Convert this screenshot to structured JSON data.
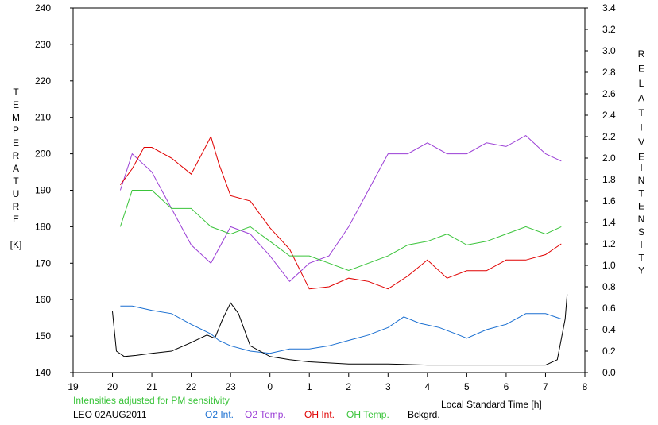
{
  "chart_data": {
    "type": "line",
    "left_axis": {
      "label_letters": [
        "T",
        "E",
        "M",
        "P",
        "E",
        "R",
        "A",
        "T",
        "U",
        "R",
        "E"
      ],
      "unit": "[K]",
      "ylim": [
        140,
        240
      ],
      "ticks": [
        "140",
        "150",
        "160",
        "170",
        "180",
        "190",
        "200",
        "210",
        "220",
        "230",
        "240"
      ]
    },
    "right_axis": {
      "label_word1": [
        "R",
        "E",
        "L",
        "A",
        "T",
        "I",
        "V",
        "E"
      ],
      "label_word2": [
        "I",
        "N",
        "T",
        "E",
        "N",
        "S",
        "I",
        "T",
        "Y"
      ],
      "ylim": [
        0.0,
        3.4
      ],
      "ticks": [
        "0.0",
        "0.2",
        "0.4",
        "0.6",
        "0.8",
        "1.0",
        "1.2",
        "1.4",
        "1.6",
        "1.8",
        "2.0",
        "2.2",
        "2.4",
        "2.6",
        "2.8",
        "3.0",
        "3.2",
        "3.4"
      ]
    },
    "x_axis": {
      "xlim": [
        19,
        32
      ],
      "ticks": [
        "19",
        "20",
        "21",
        "22",
        "23",
        "0",
        "1",
        "2",
        "3",
        "4",
        "5",
        "6",
        "7",
        "8"
      ],
      "label": "Local Standard Time [h]"
    },
    "note": "Intensities adjusted for PM sensitivity",
    "station": "LEO 02AUG2011",
    "series": [
      {
        "name": "O2 Int.",
        "axis": "right",
        "color": "#1a6fd1",
        "x": [
          20.2,
          20.5,
          21.0,
          21.5,
          22.0,
          22.5,
          22.7,
          23.0,
          23.5,
          24.0,
          24.5,
          25.0,
          25.5,
          26.0,
          26.5,
          27.0,
          27.4,
          27.8,
          28.3,
          28.8,
          29.0,
          29.5,
          30.0,
          30.5,
          31.0,
          31.4
        ],
        "y": [
          0.62,
          0.62,
          0.58,
          0.55,
          0.45,
          0.36,
          0.3,
          0.25,
          0.2,
          0.18,
          0.22,
          0.22,
          0.25,
          0.3,
          0.35,
          0.42,
          0.52,
          0.46,
          0.42,
          0.35,
          0.32,
          0.4,
          0.45,
          0.55,
          0.55,
          0.5
        ]
      },
      {
        "name": "O2 Temp.",
        "axis": "left",
        "color": "#9b3fd6",
        "x": [
          20.2,
          20.5,
          21.0,
          21.5,
          22.0,
          22.5,
          23.0,
          23.5,
          24.0,
          24.5,
          25.0,
          25.5,
          26.0,
          26.5,
          27.0,
          27.5,
          28.0,
          28.5,
          29.0,
          29.5,
          30.0,
          30.5,
          31.0,
          31.4
        ],
        "y": [
          190,
          200,
          195,
          185,
          175,
          170,
          180,
          178,
          172,
          165,
          170,
          172,
          180,
          190,
          200,
          200,
          203,
          200,
          200,
          203,
          202,
          205,
          200,
          198
        ]
      },
      {
        "name": "OH Int.",
        "axis": "right",
        "color": "#e00000",
        "x": [
          20.2,
          20.5,
          20.8,
          21.0,
          21.5,
          22.0,
          22.5,
          22.7,
          23.0,
          23.5,
          24.0,
          24.5,
          25.0,
          25.5,
          26.0,
          26.5,
          27.0,
          27.5,
          28.0,
          28.5,
          29.0,
          29.5,
          30.0,
          30.5,
          31.0,
          31.4
        ],
        "y": [
          1.75,
          1.9,
          2.1,
          2.1,
          2.0,
          1.85,
          2.2,
          1.95,
          1.65,
          1.6,
          1.35,
          1.15,
          0.78,
          0.8,
          0.88,
          0.85,
          0.78,
          0.9,
          1.05,
          0.88,
          0.95,
          0.95,
          1.05,
          1.05,
          1.1,
          1.2
        ],
        "gaps": [
          [
            22.55,
            22.7
          ],
          [
            23.5,
            23.6
          ]
        ]
      },
      {
        "name": "OH Temp.",
        "axis": "left",
        "color": "#3ac43a",
        "x": [
          20.2,
          20.5,
          21.0,
          21.5,
          22.0,
          22.5,
          23.0,
          23.5,
          24.0,
          24.5,
          25.0,
          25.5,
          26.0,
          26.5,
          27.0,
          27.5,
          28.0,
          28.5,
          29.0,
          29.5,
          30.0,
          30.5,
          31.0,
          31.4
        ],
        "y": [
          180,
          190,
          190,
          185,
          185,
          180,
          178,
          180,
          176,
          172,
          172,
          170,
          168,
          170,
          172,
          175,
          176,
          178,
          175,
          176,
          178,
          180,
          178,
          180
        ]
      },
      {
        "name": "Bckgrd.",
        "axis": "right",
        "color": "#000000",
        "x": [
          20.0,
          20.1,
          20.3,
          20.6,
          21.0,
          21.5,
          22.0,
          22.4,
          22.6,
          22.8,
          23.0,
          23.2,
          23.5,
          24.0,
          24.5,
          25.0,
          26.0,
          27.0,
          28.0,
          29.0,
          30.0,
          31.0,
          31.3,
          31.5,
          31.55
        ],
        "y": [
          0.57,
          0.2,
          0.15,
          0.16,
          0.18,
          0.2,
          0.28,
          0.35,
          0.32,
          0.5,
          0.65,
          0.55,
          0.25,
          0.15,
          0.12,
          0.1,
          0.08,
          0.08,
          0.07,
          0.07,
          0.07,
          0.07,
          0.12,
          0.5,
          0.73
        ],
        "gaps": [
          [
            23.0,
            23.15
          ]
        ]
      }
    ]
  }
}
